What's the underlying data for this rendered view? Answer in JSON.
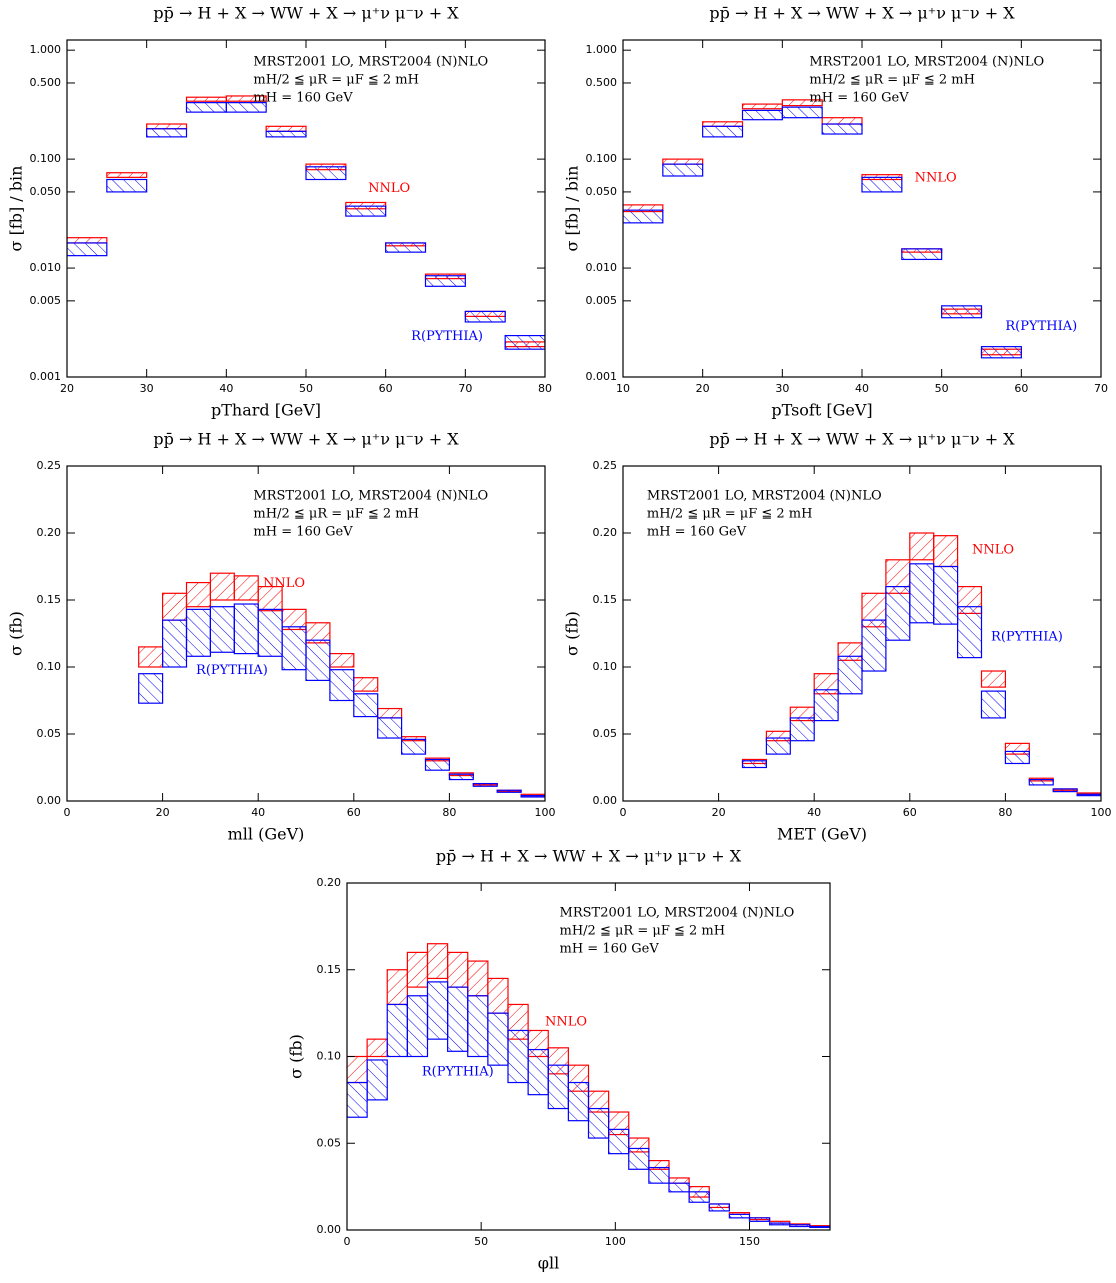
{
  "chart_data": [
    {
      "type": "histogram",
      "title": "pp̄ → H + X → WW + X → μ⁺ν μ⁻ν + X",
      "x_label": "pThard [GeV]",
      "y_label": "σ [fb] / bin",
      "annotations": [
        "MRST2001 LO, MRST2004 (N)NLO",
        "mH/2 ≦ μR = μF ≦ 2 mH",
        "mH = 160 GeV"
      ],
      "log_y": true,
      "xlim": [
        20,
        80
      ],
      "xticks": [
        20,
        30,
        40,
        50,
        60,
        70,
        80
      ],
      "ylim": [
        0.001,
        1.24
      ],
      "yticks": [
        {
          "value": 0.001,
          "label": "0.001"
        },
        {
          "value": 0.005,
          "label": "0.005"
        },
        {
          "value": 0.01,
          "label": "0.010"
        },
        {
          "value": 0.05,
          "label": "0.050"
        },
        {
          "value": 0.1,
          "label": "0.100"
        },
        {
          "value": 0.5,
          "label": "0.500"
        },
        {
          "value": 1,
          "label": "1.000"
        }
      ],
      "bins": [
        20,
        25,
        30,
        35,
        40,
        45,
        50,
        55,
        60,
        65,
        70,
        75,
        80
      ],
      "series": [
        {
          "name": "NNLO",
          "color": "#ff0000",
          "lower": [
            0.017,
            0.068,
            0.19,
            0.34,
            0.34,
            0.18,
            0.08,
            0.035,
            0.016,
            0.008,
            0.0036,
            0.0019
          ],
          "upper": [
            0.019,
            0.075,
            0.21,
            0.37,
            0.38,
            0.2,
            0.09,
            0.04,
            0.017,
            0.0088,
            0.004,
            0.0021
          ]
        },
        {
          "name": "R(PYTHIA)",
          "color": "#0000ff",
          "lower": [
            0.013,
            0.05,
            0.16,
            0.27,
            0.27,
            0.16,
            0.065,
            0.03,
            0.014,
            0.0068,
            0.0032,
            0.0018
          ],
          "upper": [
            0.017,
            0.065,
            0.19,
            0.33,
            0.33,
            0.18,
            0.085,
            0.037,
            0.017,
            0.0085,
            0.004,
            0.0024
          ]
        }
      ]
    },
    {
      "type": "histogram",
      "title": "pp̄ → H + X → WW + X → μ⁺ν μ⁻ν + X",
      "x_label": "pTsoft [GeV]",
      "y_label": "σ [fb] / bin",
      "annotations": [
        "MRST2001 LO, MRST2004 (N)NLO",
        "mH/2 ≦ μR = μF ≦ 2 mH",
        "mH = 160 GeV"
      ],
      "log_y": true,
      "xlim": [
        10,
        70
      ],
      "xticks": [
        10,
        20,
        30,
        40,
        50,
        60,
        70
      ],
      "ylim": [
        0.001,
        1.24
      ],
      "yticks": [
        {
          "value": 0.001,
          "label": "0.001"
        },
        {
          "value": 0.005,
          "label": "0.005"
        },
        {
          "value": 0.01,
          "label": "0.010"
        },
        {
          "value": 0.05,
          "label": "0.050"
        },
        {
          "value": 0.1,
          "label": "0.100"
        },
        {
          "value": 0.5,
          "label": "0.500"
        },
        {
          "value": 1,
          "label": "1.000"
        }
      ],
      "bins": [
        10,
        15,
        20,
        25,
        30,
        35,
        40,
        45,
        50,
        55,
        60
      ],
      "series": [
        {
          "name": "NNLO",
          "color": "#ff0000",
          "lower": [
            0.033,
            0.09,
            0.2,
            0.29,
            0.31,
            0.21,
            0.065,
            0.014,
            0.0038,
            0.0016
          ],
          "upper": [
            0.038,
            0.1,
            0.22,
            0.32,
            0.35,
            0.24,
            0.072,
            0.015,
            0.0042,
            0.0018
          ]
        },
        {
          "name": "R(PYTHIA)",
          "color": "#0000ff",
          "lower": [
            0.026,
            0.07,
            0.16,
            0.23,
            0.24,
            0.17,
            0.05,
            0.012,
            0.0035,
            0.0015
          ],
          "upper": [
            0.034,
            0.09,
            0.2,
            0.28,
            0.3,
            0.21,
            0.068,
            0.015,
            0.0045,
            0.0019
          ]
        }
      ]
    },
    {
      "type": "histogram",
      "title": "pp̄ → H + X → WW + X → μ⁺ν μ⁻ν + X",
      "x_label": "mll (GeV)",
      "y_label": "σ (fb)",
      "annotations": [
        "MRST2001 LO, MRST2004 (N)NLO",
        "mH/2 ≦ μR = μF ≦ 2 mH",
        "mH = 160 GeV"
      ],
      "log_y": false,
      "xlim": [
        0,
        100
      ],
      "xticks": [
        0,
        20,
        40,
        60,
        80,
        100
      ],
      "ylim": [
        0,
        0.25
      ],
      "yticks": [
        {
          "value": 0,
          "label": "0.00"
        },
        {
          "value": 0.05,
          "label": "0.05"
        },
        {
          "value": 0.1,
          "label": "0.10"
        },
        {
          "value": 0.15,
          "label": "0.15"
        },
        {
          "value": 0.2,
          "label": "0.20"
        },
        {
          "value": 0.25,
          "label": "0.25"
        }
      ],
      "bins": [
        0,
        5,
        10,
        15,
        20,
        25,
        30,
        35,
        40,
        45,
        50,
        55,
        60,
        65,
        70,
        75,
        80,
        85,
        90,
        95,
        100
      ],
      "series": [
        {
          "name": "NNLO",
          "color": "#ff0000",
          "lower": [
            0,
            0,
            0,
            0.1,
            0.135,
            0.145,
            0.15,
            0.15,
            0.142,
            0.128,
            0.118,
            0.1,
            0.082,
            0.062,
            0.045,
            0.03,
            0.019,
            0.012,
            0.007,
            0.004
          ],
          "upper": [
            0,
            0,
            0,
            0.115,
            0.155,
            0.163,
            0.17,
            0.168,
            0.16,
            0.143,
            0.133,
            0.11,
            0.092,
            0.069,
            0.048,
            0.032,
            0.021,
            0.013,
            0.008,
            0.005
          ]
        },
        {
          "name": "R(PYTHIA)",
          "color": "#0000ff",
          "lower": [
            0,
            0,
            0,
            0.073,
            0.1,
            0.108,
            0.111,
            0.11,
            0.108,
            0.098,
            0.09,
            0.075,
            0.063,
            0.047,
            0.035,
            0.023,
            0.016,
            0.011,
            0.0065,
            0.003
          ],
          "upper": [
            0,
            0,
            0,
            0.095,
            0.135,
            0.143,
            0.145,
            0.147,
            0.143,
            0.13,
            0.12,
            0.098,
            0.08,
            0.062,
            0.046,
            0.031,
            0.02,
            0.013,
            0.008,
            0.004
          ]
        }
      ]
    },
    {
      "type": "histogram",
      "title": "pp̄ → H + X → WW + X → μ⁺ν μ⁻ν + X",
      "x_label": "MET (GeV)",
      "y_label": "σ (fb)",
      "annotations": [
        "MRST2001 LO, MRST2004 (N)NLO",
        "mH/2 ≦ μR = μF ≦ 2 mH",
        "mH = 160 GeV"
      ],
      "log_y": false,
      "xlim": [
        0,
        100
      ],
      "xticks": [
        0,
        20,
        40,
        60,
        80,
        100
      ],
      "ylim": [
        0,
        0.25
      ],
      "yticks": [
        {
          "value": 0,
          "label": "0.00"
        },
        {
          "value": 0.05,
          "label": "0.05"
        },
        {
          "value": 0.1,
          "label": "0.10"
        },
        {
          "value": 0.15,
          "label": "0.15"
        },
        {
          "value": 0.2,
          "label": "0.20"
        },
        {
          "value": 0.25,
          "label": "0.25"
        }
      ],
      "bins": [
        0,
        5,
        10,
        15,
        20,
        25,
        30,
        35,
        40,
        45,
        50,
        55,
        60,
        65,
        70,
        75,
        80,
        85,
        90,
        95,
        100
      ],
      "series": [
        {
          "name": "NNLO",
          "color": "#ff0000",
          "lower": [
            0,
            0,
            0,
            0,
            0,
            0.028,
            0.045,
            0.06,
            0.08,
            0.105,
            0.13,
            0.155,
            0.18,
            0.175,
            0.14,
            0.085,
            0.035,
            0.015,
            0.008,
            0.005
          ],
          "upper": [
            0,
            0,
            0,
            0,
            0,
            0.031,
            0.052,
            0.07,
            0.095,
            0.118,
            0.155,
            0.18,
            0.2,
            0.198,
            0.16,
            0.097,
            0.043,
            0.017,
            0.009,
            0.006
          ]
        },
        {
          "name": "R(PYTHIA)",
          "color": "#0000ff",
          "lower": [
            0,
            0,
            0,
            0,
            0,
            0.025,
            0.035,
            0.045,
            0.06,
            0.08,
            0.097,
            0.12,
            0.133,
            0.132,
            0.107,
            0.062,
            0.028,
            0.012,
            0.007,
            0.004
          ],
          "upper": [
            0,
            0,
            0,
            0,
            0,
            0.03,
            0.047,
            0.062,
            0.083,
            0.108,
            0.135,
            0.16,
            0.177,
            0.175,
            0.145,
            0.082,
            0.037,
            0.016,
            0.009,
            0.005
          ]
        }
      ]
    },
    {
      "type": "histogram",
      "title": "pp̄ → H + X → WW + X → μ⁺ν μ⁻ν + X",
      "x_label": "φll",
      "y_label": "σ (fb)",
      "annotations": [
        "MRST2001 LO, MRST2004 (N)NLO",
        "mH/2 ≦ μR = μF ≦ 2 mH",
        "mH = 160 GeV"
      ],
      "log_y": false,
      "xlim": [
        0,
        180
      ],
      "xticks": [
        0,
        50,
        100,
        150
      ],
      "ylim": [
        0,
        0.2
      ],
      "yticks": [
        {
          "value": 0,
          "label": "0.00"
        },
        {
          "value": 0.05,
          "label": "0.05"
        },
        {
          "value": 0.1,
          "label": "0.10"
        },
        {
          "value": 0.15,
          "label": "0.15"
        },
        {
          "value": 0.2,
          "label": "0.20"
        }
      ],
      "bins": [
        0,
        7.5,
        15,
        22.5,
        30,
        37.5,
        45,
        52.5,
        60,
        67.5,
        75,
        82.5,
        90,
        97.5,
        105,
        112.5,
        120,
        127.5,
        135,
        142.5,
        150,
        157.5,
        165,
        172.5,
        180
      ],
      "series": [
        {
          "name": "NNLO",
          "color": "#ff0000",
          "lower": [
            0.085,
            0.1,
            0.13,
            0.14,
            0.145,
            0.14,
            0.135,
            0.125,
            0.11,
            0.1,
            0.09,
            0.08,
            0.068,
            0.055,
            0.045,
            0.035,
            0.027,
            0.019,
            0.013,
            0.009,
            0.006,
            0.004,
            0.003,
            0.002
          ],
          "upper": [
            0.1,
            0.11,
            0.15,
            0.16,
            0.165,
            0.16,
            0.155,
            0.145,
            0.13,
            0.115,
            0.105,
            0.095,
            0.08,
            0.068,
            0.053,
            0.04,
            0.03,
            0.025,
            0.015,
            0.01,
            0.007,
            0.005,
            0.0035,
            0.0025
          ]
        },
        {
          "name": "R(PYTHIA)",
          "color": "#0000ff",
          "lower": [
            0.065,
            0.075,
            0.1,
            0.1,
            0.11,
            0.103,
            0.1,
            0.095,
            0.085,
            0.078,
            0.07,
            0.063,
            0.053,
            0.044,
            0.035,
            0.027,
            0.022,
            0.016,
            0.011,
            0.007,
            0.005,
            0.003,
            0.002,
            0.0015
          ],
          "upper": [
            0.085,
            0.098,
            0.13,
            0.135,
            0.143,
            0.14,
            0.135,
            0.125,
            0.115,
            0.104,
            0.095,
            0.085,
            0.07,
            0.058,
            0.047,
            0.036,
            0.027,
            0.022,
            0.015,
            0.009,
            0.007,
            0.004,
            0.003,
            0.002
          ]
        }
      ]
    }
  ]
}
